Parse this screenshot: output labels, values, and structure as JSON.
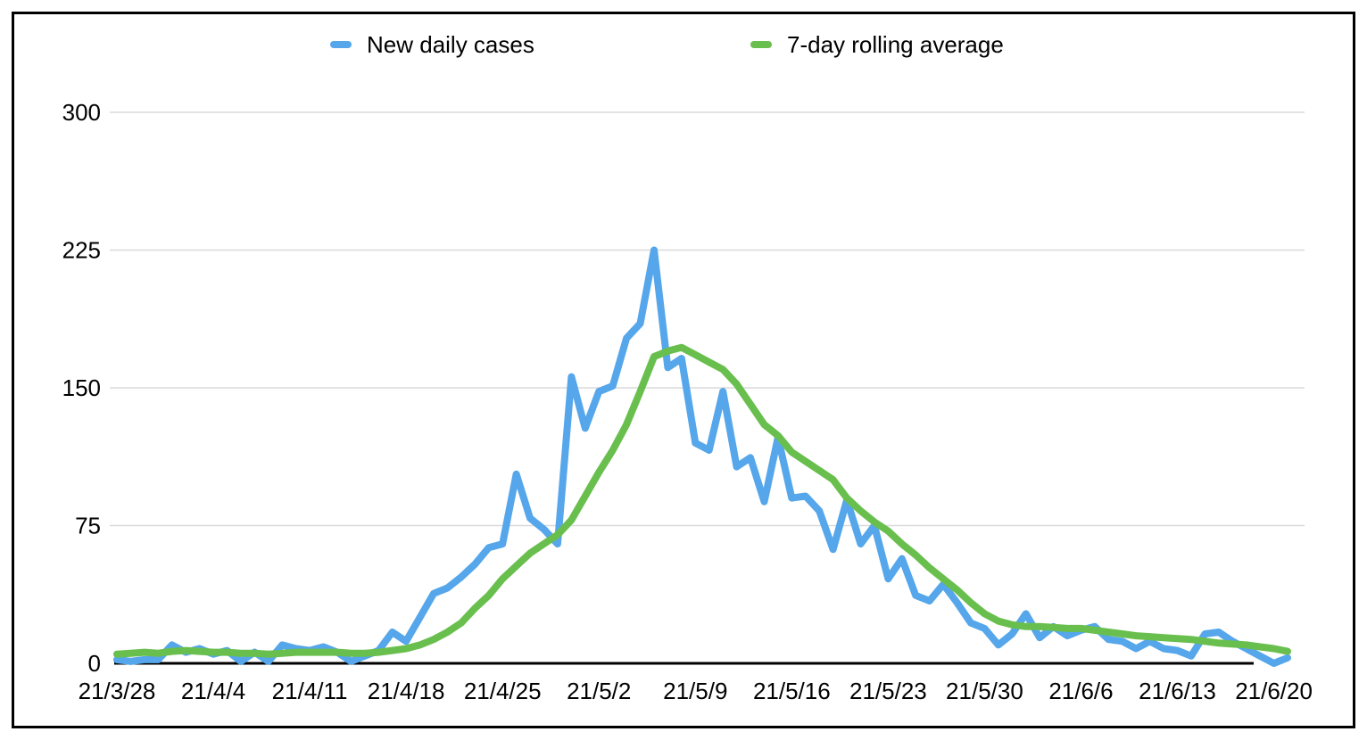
{
  "chart_data": {
    "type": "line",
    "title": "",
    "xlabel": "",
    "ylabel": "",
    "ylim": [
      0,
      300
    ],
    "yticks": [
      0,
      75,
      150,
      225,
      300
    ],
    "grid": "horizontal",
    "legend_position": "top",
    "xticks": [
      "21/3/28",
      "21/4/4",
      "21/4/11",
      "21/4/18",
      "21/4/25",
      "21/5/2",
      "21/5/9",
      "21/5/16",
      "21/5/23",
      "21/5/30",
      "21/6/6",
      "21/6/13",
      "21/6/20"
    ],
    "x": [
      "21/3/28",
      "21/3/29",
      "21/3/30",
      "21/3/31",
      "21/4/1",
      "21/4/2",
      "21/4/3",
      "21/4/4",
      "21/4/5",
      "21/4/6",
      "21/4/7",
      "21/4/8",
      "21/4/9",
      "21/4/10",
      "21/4/11",
      "21/4/12",
      "21/4/13",
      "21/4/14",
      "21/4/15",
      "21/4/16",
      "21/4/17",
      "21/4/18",
      "21/4/19",
      "21/4/20",
      "21/4/21",
      "21/4/22",
      "21/4/23",
      "21/4/24",
      "21/4/25",
      "21/4/26",
      "21/4/27",
      "21/4/28",
      "21/4/29",
      "21/4/30",
      "21/5/1",
      "21/5/2",
      "21/5/3",
      "21/5/4",
      "21/5/5",
      "21/5/6",
      "21/5/7",
      "21/5/8",
      "21/5/9",
      "21/5/10",
      "21/5/11",
      "21/5/12",
      "21/5/13",
      "21/5/14",
      "21/5/15",
      "21/5/16",
      "21/5/17",
      "21/5/18",
      "21/5/19",
      "21/5/20",
      "21/5/21",
      "21/5/22",
      "21/5/23",
      "21/5/24",
      "21/5/25",
      "21/5/26",
      "21/5/27",
      "21/5/28",
      "21/5/29",
      "21/5/30",
      "21/5/31",
      "21/6/1",
      "21/6/2",
      "21/6/3",
      "21/6/4",
      "21/6/5",
      "21/6/6",
      "21/6/7",
      "21/6/8",
      "21/6/9",
      "21/6/10",
      "21/6/11",
      "21/6/12",
      "21/6/13",
      "21/6/14",
      "21/6/15",
      "21/6/16",
      "21/6/17",
      "21/6/18",
      "21/6/19",
      "21/6/20",
      "21/6/21"
    ],
    "series": [
      {
        "name": "New daily cases",
        "color": "#55a6ea",
        "values": [
          2,
          1,
          2,
          2,
          10,
          6,
          8,
          5,
          7,
          1,
          6,
          1,
          10,
          8,
          7,
          9,
          6,
          1,
          4,
          7,
          17,
          12,
          25,
          38,
          41,
          47,
          54,
          63,
          65,
          103,
          79,
          73,
          65,
          156,
          128,
          148,
          151,
          177,
          185,
          225,
          161,
          166,
          120,
          116,
          148,
          107,
          112,
          88,
          123,
          90,
          91,
          83,
          62,
          89,
          65,
          75,
          46,
          57,
          37,
          34,
          43,
          33,
          22,
          19,
          10,
          16,
          27,
          14,
          20,
          15,
          18,
          20,
          13,
          12,
          8,
          12,
          8,
          7,
          4,
          16,
          17,
          12,
          8,
          4,
          0,
          3
        ]
      },
      {
        "name": "7-day rolling average",
        "color": "#69bf4d",
        "values": [
          5,
          5.5,
          6,
          5.5,
          6.5,
          7,
          6.5,
          6,
          6,
          5.5,
          5.5,
          5,
          5.5,
          6,
          6,
          6,
          6,
          5.5,
          5.5,
          6,
          7,
          8,
          10,
          13,
          17,
          22,
          30,
          37,
          46,
          53,
          60,
          65,
          70,
          78,
          91,
          104,
          116,
          130,
          148,
          167,
          170,
          172,
          168,
          164,
          160,
          152,
          141,
          130,
          124,
          115,
          110,
          105,
          100,
          90,
          83,
          77,
          72,
          65,
          59,
          52,
          46,
          40,
          33,
          27,
          23,
          21,
          20,
          20,
          19.5,
          19,
          19,
          18,
          17,
          16,
          15,
          14.5,
          14,
          13.5,
          13,
          12,
          11,
          10.5,
          10,
          9,
          8,
          6.5
        ]
      }
    ],
    "axis_color": "#000000",
    "gridline_color": "#dadada",
    "baseline_color": "#000000"
  }
}
